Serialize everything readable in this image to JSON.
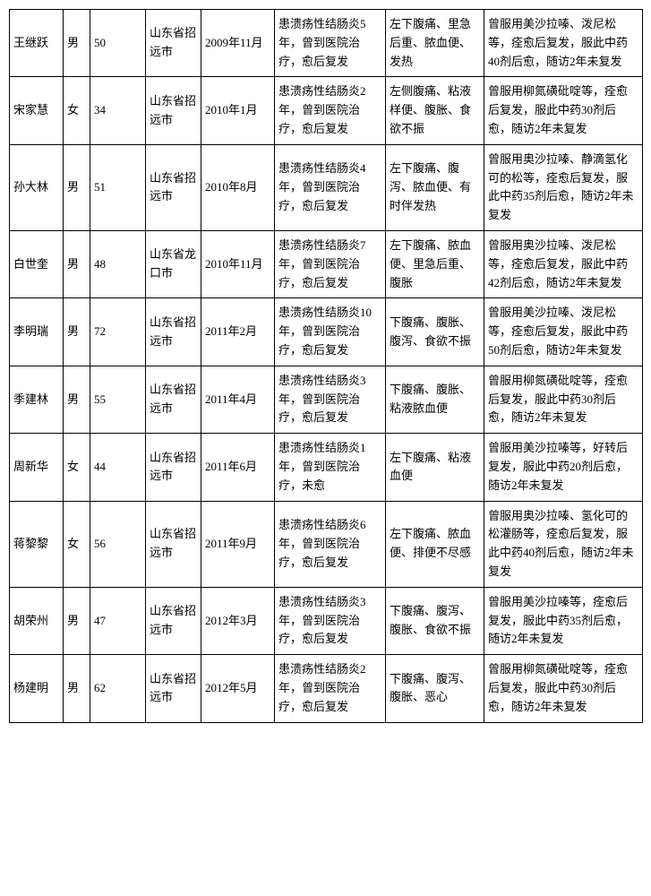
{
  "table": {
    "columns": [
      "name",
      "sex",
      "age",
      "place",
      "date",
      "history",
      "symptoms",
      "treatment"
    ],
    "col_classes": [
      "c-name",
      "c-sex",
      "c-age",
      "c-place",
      "c-date",
      "c-hist",
      "c-symp",
      "c-trt"
    ],
    "rows": [
      {
        "name": "王继跃",
        "sex": "男",
        "age": "50",
        "place": "山东省招远市",
        "date": "2009年11月",
        "history": "患溃疡性结肠炎5年，曾到医院治疗，愈后复发",
        "symptoms": "左下腹痛、里急后重、脓血便、发热",
        "treatment": "曾服用美沙拉嗪、泼尼松等，痊愈后复发，服此中药40剂后愈，随访2年未复发"
      },
      {
        "name": "宋家慧",
        "sex": "女",
        "age": "34",
        "place": "山东省招远市",
        "date": "2010年1月",
        "history": "患溃疡性结肠炎2年，曾到医院治疗，愈后复发",
        "symptoms": "左侧腹痛、粘液样便、腹胀、食欲不振",
        "treatment": "曾服用柳氮磺砒啶等，痊愈后复发，服此中药30剂后愈，随访2年未复发"
      },
      {
        "name": "孙大林",
        "sex": "男",
        "age": "51",
        "place": "山东省招远市",
        "date": "2010年8月",
        "history": "患溃疡性结肠炎4年，曾到医院治疗，愈后复发",
        "symptoms": "左下腹痛、腹泻、脓血便、有时伴发热",
        "treatment": "曾服用奥沙拉嗪、静滴氢化可的松等，痊愈后复发，服此中药35剂后愈，随访2年未复发"
      },
      {
        "name": "白世奎",
        "sex": "男",
        "age": "48",
        "place": "山东省龙口市",
        "date": "2010年11月",
        "history": "患溃疡性结肠炎7年，曾到医院治疗，愈后复发",
        "symptoms": "左下腹痛、脓血便、里急后重、腹胀",
        "treatment": "曾服用奥沙拉嗪、泼尼松等，痊愈后复发，服此中药42剂后愈，随访2年未复发"
      },
      {
        "name": "李明瑞",
        "sex": "男",
        "age": "72",
        "place": "山东省招远市",
        "date": "2011年2月",
        "history": "患溃疡性结肠炎10年，曾到医院治疗，愈后复发",
        "symptoms": "下腹痛、腹胀、腹泻、食欲不振",
        "treatment": "曾服用美沙拉嗪、泼尼松等，痊愈后复发，服此中药50剂后愈，随访2年未复发"
      },
      {
        "name": "季建林",
        "sex": "男",
        "age": "55",
        "place": "山东省招远市",
        "date": "2011年4月",
        "history": "患溃疡性结肠炎3年，曾到医院治疗，愈后复发",
        "symptoms": "下腹痛、腹胀、粘液脓血便",
        "treatment": "曾服用柳氮磺砒啶等，痊愈后复发，服此中药30剂后愈，随访2年未复发"
      },
      {
        "name": "周新华",
        "sex": "女",
        "age": "44",
        "place": "山东省招远市",
        "date": "2011年6月",
        "history": "患溃疡性结肠炎1年，曾到医院治疗，未愈",
        "symptoms": "左下腹痛、粘液血便",
        "treatment": "曾服用美沙拉嗪等，好转后复发，服此中药20剂后愈，随访2年未复发"
      },
      {
        "name": "蒋黎黎",
        "sex": "女",
        "age": "56",
        "place": "山东省招远市",
        "date": "2011年9月",
        "history": "患溃疡性结肠炎6年，曾到医院治疗，愈后复发",
        "symptoms": "左下腹痛、脓血便、排便不尽感",
        "treatment": "曾服用奥沙拉嗪、氢化可的松灌肠等，痊愈后复发，服此中药40剂后愈，随访2年未复发"
      },
      {
        "name": "胡荣州",
        "sex": "男",
        "age": "47",
        "place": "山东省招远市",
        "date": "2012年3月",
        "history": "患溃疡性结肠炎3年，曾到医院治疗，愈后复发",
        "symptoms": "下腹痛、腹泻、腹胀、食欲不振",
        "treatment": "曾服用美沙拉嗪等，痊愈后复发，服此中药35剂后愈，随访2年未复发"
      },
      {
        "name": "杨建明",
        "sex": "男",
        "age": "62",
        "place": "山东省招远市",
        "date": "2012年5月",
        "history": "患溃疡性结肠炎2年，曾到医院治疗，愈后复发",
        "symptoms": "下腹痛、腹泻、腹胀、恶心",
        "treatment": "曾服用柳氮磺砒啶等，痊愈后复发，服此中药30剂后愈，随访2年未复发"
      }
    ]
  }
}
